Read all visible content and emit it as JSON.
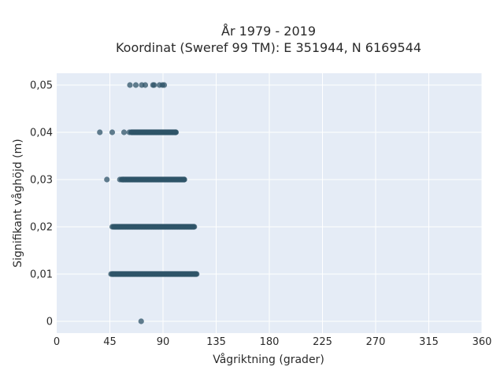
{
  "chart_data": {
    "type": "scatter",
    "title_lines": [
      "År 1979 - 2019",
      "Koordinat (Sweref 99 TM): E 351944, N 6169544"
    ],
    "xlabel": "Vågriktning (grader)",
    "ylabel": "Signifikant våghöjd (m)",
    "xlim": [
      0,
      360
    ],
    "ylim": [
      -0.0025,
      0.0525
    ],
    "x_ticks": [
      0,
      45,
      90,
      135,
      180,
      225,
      270,
      315,
      360
    ],
    "x_tick_labels": [
      "0",
      "45",
      "90",
      "135",
      "180",
      "225",
      "270",
      "315",
      "360"
    ],
    "y_ticks": [
      0,
      0.01,
      0.02,
      0.03,
      0.04,
      0.05
    ],
    "y_tick_labels": [
      "0",
      "0,01",
      "0,02",
      "0,03",
      "0,04",
      "0,05"
    ],
    "grid": true,
    "marker_color": "#2f5468",
    "plot_background": "#e5ecf6",
    "bands": [
      {
        "y": 0.0,
        "dense_range": null,
        "points": [
          71.5
        ]
      },
      {
        "y": 0.01,
        "dense_range": [
          47,
          118
        ],
        "points": [
          46,
          47.5,
          117,
          118.5
        ]
      },
      {
        "y": 0.02,
        "dense_range": [
          48,
          116
        ],
        "points": [
          47,
          116.5
        ]
      },
      {
        "y": 0.03,
        "dense_range": [
          55,
          108
        ],
        "points": [
          42.5,
          53.5,
          56.5,
          108
        ]
      },
      {
        "y": 0.04,
        "dense_range": [
          63,
          101
        ],
        "points": [
          36.5,
          47,
          57,
          61.5,
          100.5
        ]
      },
      {
        "y": 0.05,
        "dense_range": null,
        "points": [
          62,
          67,
          72,
          75,
          81.5,
          82.5,
          87,
          89.5,
          91
        ]
      }
    ]
  }
}
